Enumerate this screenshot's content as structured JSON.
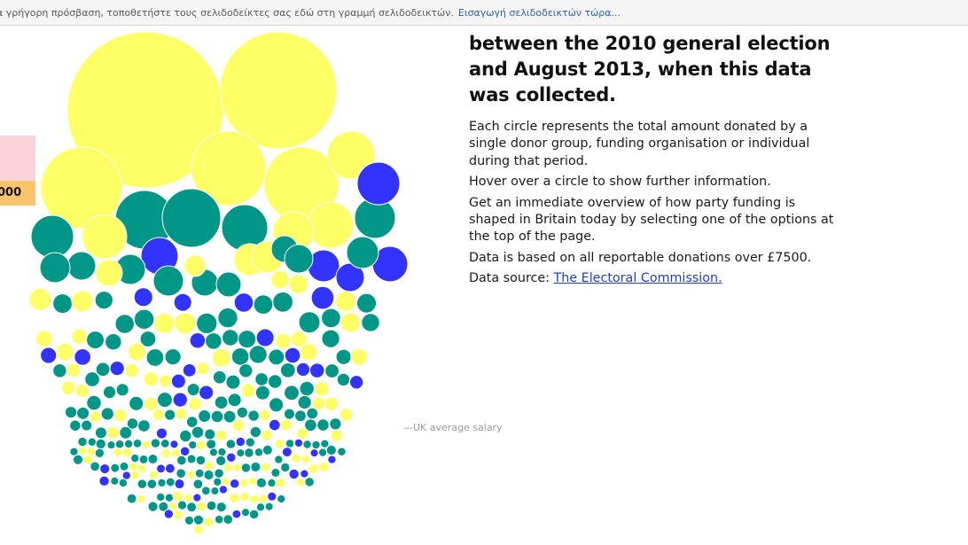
{
  "bookmarks_bar": {
    "hint": "α γρήγορη πρόσβαση, τοποθετήστε τους σελιδοδείκτες σας εδώ στη γραμμή σελιδοδεικτών.",
    "import_link": "Εισαγωγή σελιδοδεικτών τώρα..."
  },
  "tooltip": {
    "amount_fragment": "000"
  },
  "salary_label": "—UK average salary",
  "info": {
    "headline": "between the 2010 general election and August 2013, when this data was collected.",
    "paragraphs": [
      "Each circle represents the total amount donated by a single donor group, funding organisation or individual during that period.",
      "Hover over a circle to show further information.",
      "Get an immediate overview of how party funding is shaped in Britain today by selecting one of the options at the top of the page.",
      "Data is based on all reportable donations over £7500."
    ],
    "source_prefix": "Data source: ",
    "source_link": "The Electoral Commission."
  },
  "colors": {
    "yellow": "#ffff66",
    "teal": "#009688",
    "blue": "#3333ff",
    "tooltip_bg": "#fcd3d9",
    "tooltip_amount_bg": "#f9c46c"
  }
}
